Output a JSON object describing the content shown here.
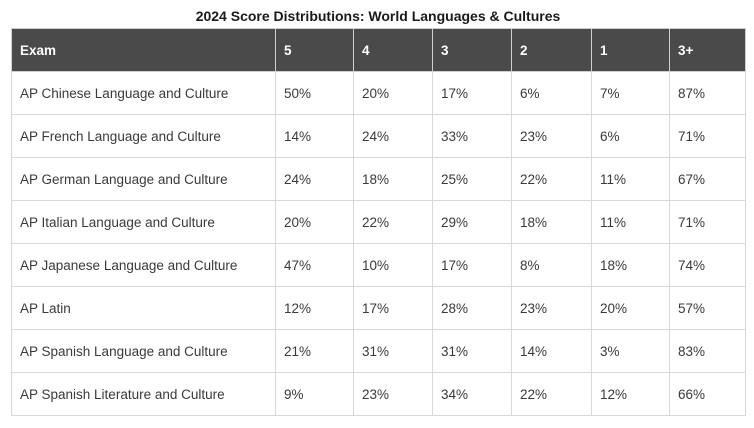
{
  "title": "2024 Score Distributions: World Languages & Cultures",
  "columns": [
    "Exam",
    "5",
    "4",
    "3",
    "2",
    "1",
    "3+"
  ],
  "rows": [
    {
      "exam": "AP Chinese Language and Culture",
      "s5": "50%",
      "s4": "20%",
      "s3": "17%",
      "s2": "6%",
      "s1": "7%",
      "s3plus": "87%"
    },
    {
      "exam": "AP French Language and Culture",
      "s5": "14%",
      "s4": "24%",
      "s3": "33%",
      "s2": "23%",
      "s1": "6%",
      "s3plus": "71%"
    },
    {
      "exam": "AP German Language and Culture",
      "s5": "24%",
      "s4": "18%",
      "s3": "25%",
      "s2": "22%",
      "s1": "11%",
      "s3plus": "67%"
    },
    {
      "exam": "AP Italian Language and Culture",
      "s5": "20%",
      "s4": "22%",
      "s3": "29%",
      "s2": "18%",
      "s1": "11%",
      "s3plus": "71%"
    },
    {
      "exam": "AP Japanese Language and Culture",
      "s5": "47%",
      "s4": "10%",
      "s3": "17%",
      "s2": "8%",
      "s1": "18%",
      "s3plus": "74%"
    },
    {
      "exam": "AP Latin",
      "s5": "12%",
      "s4": "17%",
      "s3": "28%",
      "s2": "23%",
      "s1": "20%",
      "s3plus": "57%"
    },
    {
      "exam": "AP Spanish Language and Culture",
      "s5": "21%",
      "s4": "31%",
      "s3": "31%",
      "s2": "14%",
      "s1": "3%",
      "s3plus": "83%"
    },
    {
      "exam": "AP Spanish Literature and Culture",
      "s5": "9%",
      "s4": "23%",
      "s3": "34%",
      "s2": "22%",
      "s1": "12%",
      "s3plus": "66%"
    }
  ]
}
